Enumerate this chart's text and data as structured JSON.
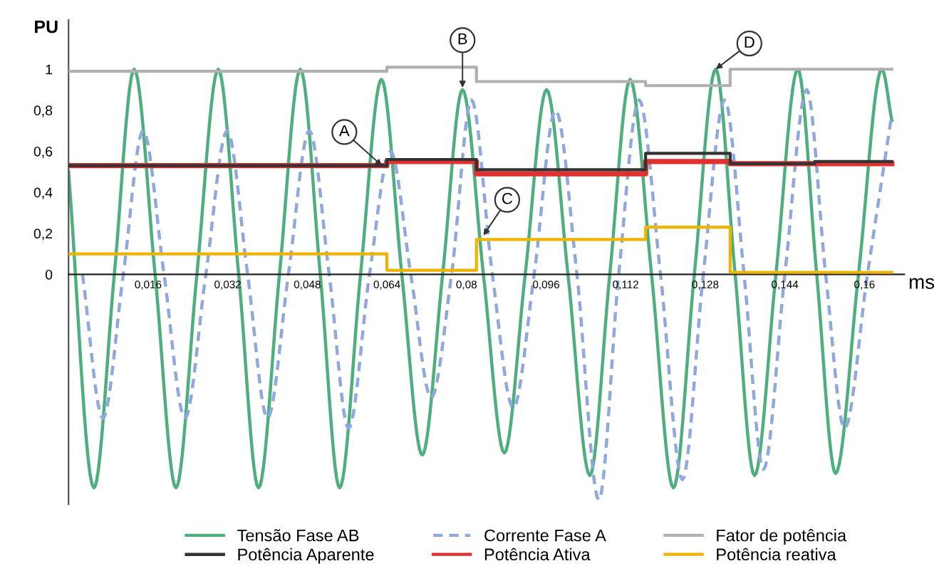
{
  "chart_data": {
    "type": "line",
    "xlabel": "ms",
    "ylabel": "PU",
    "xlim": [
      0,
      0.168
    ],
    "ylim": [
      -1.12,
      1.24
    ],
    "xticks": [
      {
        "value": 0.016,
        "label": "0,016"
      },
      {
        "value": 0.032,
        "label": "0,032"
      },
      {
        "value": 0.048,
        "label": "0,048"
      },
      {
        "value": 0.064,
        "label": "0,064"
      },
      {
        "value": 0.08,
        "label": "0,08"
      },
      {
        "value": 0.096,
        "label": "0,096"
      },
      {
        "value": 0.112,
        "label": "0,112"
      },
      {
        "value": 0.128,
        "label": "0,128"
      },
      {
        "value": 0.144,
        "label": "0,144"
      },
      {
        "value": 0.16,
        "label": "0,16"
      }
    ],
    "yticks": [
      0,
      {
        "value": 0.2,
        "label": "0,2"
      },
      {
        "value": 0.4,
        "label": "0,4"
      },
      {
        "value": 0.6,
        "label": "0,6"
      },
      {
        "value": 0.8,
        "label": "0,8"
      },
      1
    ],
    "grid": false,
    "legend": "bottom",
    "series": [
      {
        "name": "Tensão Fase AB",
        "color": "#4caf7d",
        "line_style": "solid",
        "x": [
          0,
          0.0051,
          0.0092,
          0.0132,
          0.0174,
          0.0216,
          0.0258,
          0.0301,
          0.0342,
          0.0382,
          0.0424,
          0.0466,
          0.0506,
          0.0545,
          0.0587,
          0.0629,
          0.067,
          0.0711,
          0.0752,
          0.0792,
          0.0834,
          0.0876,
          0.0918,
          0.0961,
          0.1004,
          0.1048,
          0.1088,
          0.1129,
          0.1172,
          0.1216,
          0.1258,
          0.1301,
          0.134,
          0.1379,
          0.1422,
          0.1466,
          0.1504,
          0.1542,
          0.1588,
          0.1635,
          0.1655
        ],
        "values": [
          0.5,
          -1.04,
          0,
          1.0,
          0,
          -1.04,
          0,
          1.0,
          0,
          -1.04,
          0,
          1.0,
          0,
          -1.04,
          0,
          0.95,
          0,
          -0.88,
          0,
          0.9,
          0,
          -0.87,
          0,
          0.9,
          0,
          -0.98,
          0,
          0.95,
          0,
          -1.04,
          0,
          1.0,
          0,
          -0.98,
          0,
          1.0,
          0,
          -0.97,
          0,
          1.0,
          0.75
        ]
      },
      {
        "name": "Corrente Fase A",
        "color": "#8fa8e0",
        "line_style": "dashed",
        "x": [
          0.0028,
          0.0069,
          0.011,
          0.015,
          0.0192,
          0.0234,
          0.0276,
          0.0319,
          0.036,
          0.04,
          0.0442,
          0.0484,
          0.0524,
          0.0563,
          0.0605,
          0.0647,
          0.0688,
          0.0729,
          0.077,
          0.081,
          0.0852,
          0.0894,
          0.0936,
          0.0979,
          0.1022,
          0.1066,
          0.1106,
          0.1147,
          0.119,
          0.1234,
          0.1276,
          0.1319,
          0.1358,
          0.1397,
          0.144,
          0.1484,
          0.1522,
          0.156,
          0.1606,
          0.1653
        ],
        "values": [
          0,
          -0.7,
          0,
          0.7,
          0,
          -0.7,
          0,
          0.7,
          0,
          -0.7,
          0,
          0.7,
          0,
          -0.75,
          0,
          0.6,
          0,
          -0.6,
          0,
          0.85,
          0,
          -0.65,
          0,
          0.8,
          0,
          -1.1,
          0,
          0.85,
          0,
          -1.0,
          0,
          0.85,
          0,
          -0.95,
          0,
          0.9,
          0,
          -0.75,
          0,
          0.75
        ]
      },
      {
        "name": "Fator de potência",
        "type": "step",
        "color": "#b0b0b0",
        "line_style": "solid",
        "x": [
          0,
          0.064,
          0.082,
          0.116,
          0.133,
          0.1655
        ],
        "values": [
          0.99,
          1.01,
          0.94,
          0.92,
          1.0,
          1.0
        ]
      },
      {
        "name": "Potência Aparente",
        "type": "step",
        "color": "#333333",
        "line_style": "solid",
        "x": [
          0,
          0.064,
          0.082,
          0.116,
          0.133,
          0.15,
          0.1655
        ],
        "values": [
          0.53,
          0.56,
          0.51,
          0.59,
          0.54,
          0.55,
          0.55
        ]
      },
      {
        "name": "Potência Ativa",
        "type": "step",
        "color": "#e03030",
        "line_style": "solid",
        "x": [
          0,
          0.064,
          0.082,
          0.116,
          0.133,
          0.1655
        ],
        "values": [
          0.53,
          0.55,
          0.49,
          0.55,
          0.54,
          0.54
        ]
      },
      {
        "name": "Potência reativa",
        "type": "step",
        "color": "#f0b400",
        "line_style": "solid",
        "x": [
          0,
          0.064,
          0.082,
          0.116,
          0.133,
          0.1655
        ],
        "values": [
          0.1,
          0.02,
          0.17,
          0.23,
          0.01,
          0.01
        ]
      }
    ],
    "annotations": [
      {
        "text": "A",
        "x": 0.063,
        "y": 0.53
      },
      {
        "text": "B",
        "x": 0.0792,
        "y": 0.91
      },
      {
        "text": "C",
        "x": 0.0834,
        "y": 0.19
      },
      {
        "text": "D",
        "x": 0.1301,
        "y": 1.0
      }
    ]
  }
}
